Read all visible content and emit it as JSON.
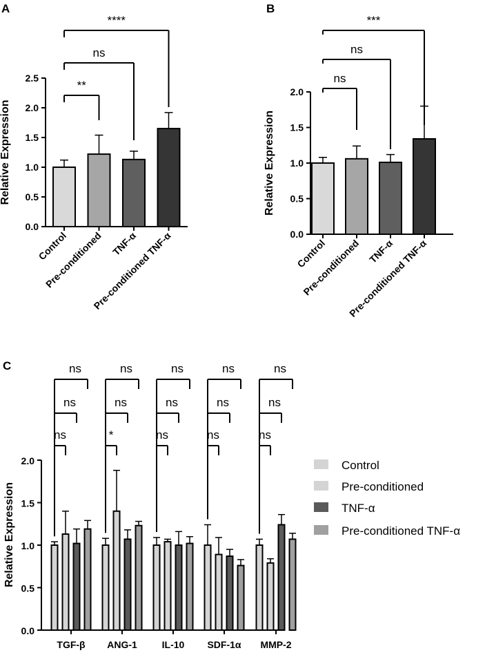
{
  "chart_data": [
    {
      "panel": "A",
      "type": "bar",
      "ylabel": "Relative Expression",
      "ylim": [
        0,
        2.5
      ],
      "yticks": [
        "0.0",
        "0.5",
        "1.0",
        "1.5",
        "2.0",
        "2.5"
      ],
      "categories": [
        "Control",
        "Pre-conditioned",
        "TNF-α",
        "Pre-conditioned TNF-α"
      ],
      "values": [
        1.0,
        1.22,
        1.13,
        1.65
      ],
      "errors": [
        0.12,
        0.32,
        0.14,
        0.27
      ],
      "colors": [
        "#d9d9d9",
        "#a6a6a6",
        "#5f5f5f",
        "#353535"
      ],
      "comparisons": [
        {
          "from": 0,
          "to": 1,
          "label": "**"
        },
        {
          "from": 0,
          "to": 2,
          "label": "ns"
        },
        {
          "from": 0,
          "to": 3,
          "label": "****"
        }
      ]
    },
    {
      "panel": "B",
      "type": "bar",
      "ylabel": "Relative Expression",
      "ylim": [
        0,
        2.0
      ],
      "yticks": [
        "0.0",
        "0.5",
        "1.0",
        "1.5",
        "2.0"
      ],
      "categories": [
        "Control",
        "Pre-conditioned",
        "TNF-α",
        "Pre-conditioned TNF-α"
      ],
      "values": [
        1.0,
        1.06,
        1.01,
        1.34
      ],
      "errors": [
        0.08,
        0.18,
        0.11,
        0.46
      ],
      "colors": [
        "#d9d9d9",
        "#a6a6a6",
        "#5f5f5f",
        "#353535"
      ],
      "comparisons": [
        {
          "from": 0,
          "to": 1,
          "label": "ns"
        },
        {
          "from": 0,
          "to": 2,
          "label": "ns"
        },
        {
          "from": 0,
          "to": 3,
          "label": "***"
        }
      ]
    },
    {
      "panel": "C",
      "type": "bar",
      "ylabel": "Relative Expression",
      "ylim": [
        0,
        2.0
      ],
      "yticks": [
        "0.0",
        "0.5",
        "1.0",
        "1.5",
        "2.0"
      ],
      "categories": [
        "TGF-β",
        "ANG-1",
        "IL-10",
        "SDF-1α",
        "MMP-2"
      ],
      "series": [
        {
          "name": "Control",
          "color": "#d4d4d4",
          "values": [
            1.0,
            1.0,
            1.0,
            1.0,
            1.0
          ],
          "errors": [
            0.04,
            0.08,
            0.09,
            0.24,
            0.07
          ]
        },
        {
          "name": "Pre-conditioned",
          "color": "#d4d4d4",
          "values": [
            1.13,
            1.4,
            1.04,
            0.89,
            0.79
          ],
          "errors": [
            0.27,
            0.48,
            0.03,
            0.2,
            0.05
          ]
        },
        {
          "name": "TNF-α",
          "color": "#5a5a5a",
          "values": [
            1.02,
            1.07,
            1.0,
            0.87,
            1.24
          ],
          "errors": [
            0.17,
            0.11,
            0.16,
            0.08,
            0.12
          ]
        },
        {
          "name": "Pre-conditioned TNF-α",
          "color": "#a0a0a0",
          "values": [
            1.19,
            1.23,
            1.02,
            0.76,
            1.07
          ],
          "errors": [
            0.1,
            0.05,
            0.08,
            0.07,
            0.07
          ]
        }
      ],
      "comparisons": [
        [
          "ns",
          "ns",
          "ns"
        ],
        [
          "*",
          "ns",
          "ns"
        ],
        [
          "ns",
          "ns",
          "ns"
        ],
        [
          "ns",
          "ns",
          "ns"
        ],
        [
          "ns",
          "ns",
          "ns"
        ]
      ],
      "legend": "right"
    }
  ]
}
